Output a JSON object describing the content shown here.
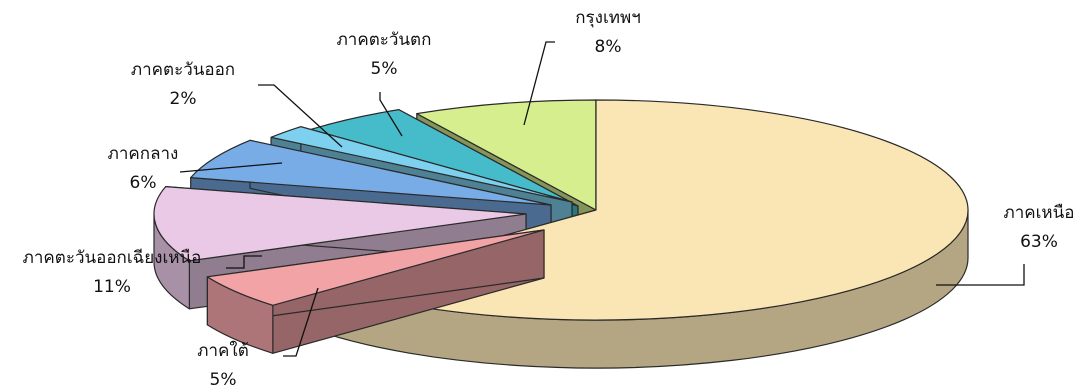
{
  "chart_data": {
    "type": "pie",
    "title": "",
    "categories": [
      "ภาคเหนือ",
      "ภาคใต้",
      "ภาคตะวันออกเฉียงเหนือ",
      "ภาคกลาง",
      "ภาคตะวันออก",
      "ภาคตะวันตก",
      "กรุงเทพฯ"
    ],
    "values": [
      63,
      5,
      11,
      6,
      2,
      5,
      8
    ],
    "labels": [
      "63%",
      "5%",
      "11%",
      "6%",
      "2%",
      "5%",
      "8%"
    ],
    "colors": [
      "#FAE6B4",
      "#F2A3A6",
      "#E9C9E6",
      "#78ACE6",
      "#7DD0EE",
      "#46BCCB",
      "#D6EE8E"
    ],
    "exploded": true,
    "three_d": true,
    "legend": "none"
  }
}
